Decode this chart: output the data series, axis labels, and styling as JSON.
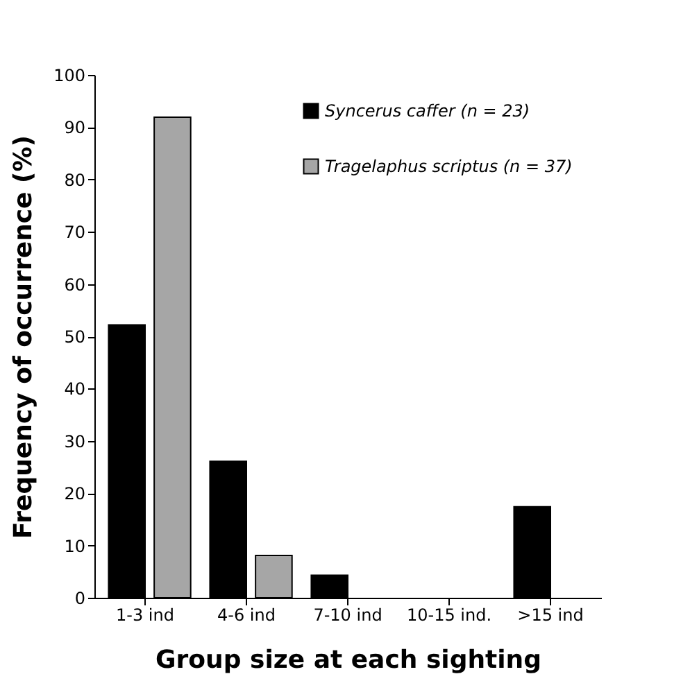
{
  "chart_data": {
    "type": "bar",
    "xlabel": "Group size at each sighting",
    "ylabel": "Frequency of occurrence (%)",
    "categories": [
      "1-3 ind",
      "4-6 ind",
      "7-10 ind",
      "10-15 ind.",
      ">15 ind"
    ],
    "series": [
      {
        "name": "Syncerus caffer (n = 23)",
        "color": "#000000",
        "values": [
          52.2,
          26.1,
          4.3,
          0,
          17.4
        ]
      },
      {
        "name": "Tragelaphus scriptus (n = 37)",
        "color": "#a6a6a6",
        "values": [
          91.9,
          8.1,
          0,
          0,
          0
        ]
      }
    ],
    "ylim": [
      0,
      100
    ],
    "yticks": [
      0,
      10,
      20,
      30,
      40,
      50,
      60,
      70,
      80,
      90,
      100
    ],
    "grid": false,
    "legend": "top right"
  }
}
